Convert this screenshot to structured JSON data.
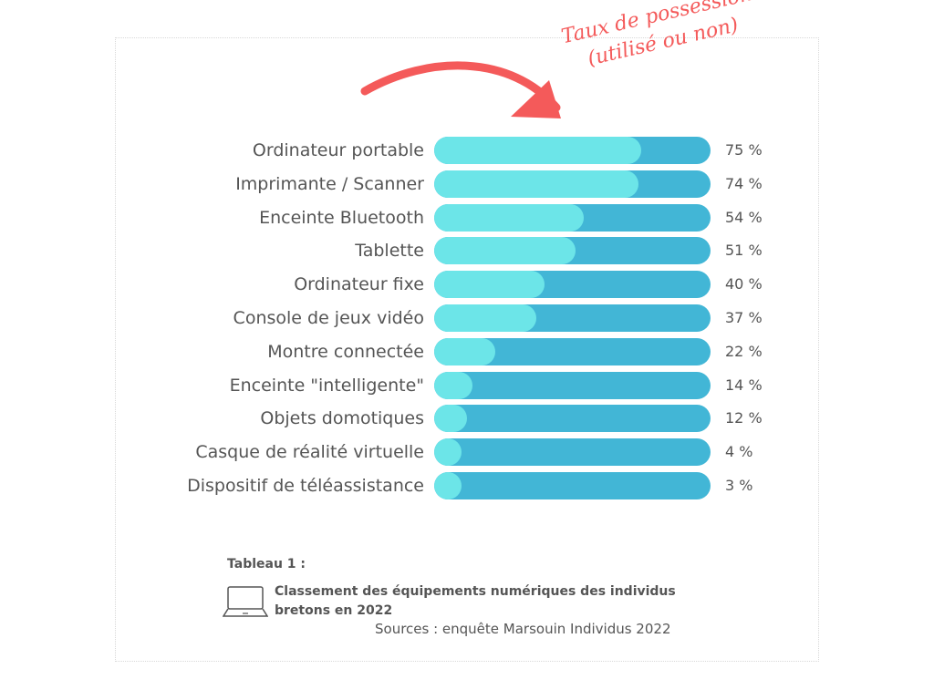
{
  "chart_data": {
    "type": "bar",
    "orientation": "horizontal",
    "annotation": [
      "Taux de possession",
      "(utilisé ou non)"
    ],
    "categories": [
      "Ordinateur portable",
      "Imprimante / Scanner",
      "Enceinte Bluetooth",
      "Tablette",
      "Ordinateur fixe",
      "Console de jeux vidéo",
      "Montre connectée",
      "Enceinte \"intelligente\"",
      "Objets domotiques",
      "Casque de réalité virtuelle",
      "Dispositif de téléassistance"
    ],
    "values": [
      75,
      74,
      54,
      51,
      40,
      37,
      22,
      14,
      12,
      4,
      3
    ],
    "value_labels": [
      "75 %",
      "74 %",
      "54 %",
      "51 %",
      "40 %",
      "37 %",
      "22 %",
      "14 %",
      "12 %",
      "4 %",
      "3 %"
    ],
    "xlim": [
      0,
      100
    ],
    "colors": {
      "fill": "#6ce5e8",
      "track": "#42b6d6",
      "annotation": "#f45a5a"
    }
  },
  "caption": {
    "heading": "Tableau 1 :",
    "title": "Classement des équipements numériques des individus bretons en 2022",
    "source": "Sources : enquête Marsouin Individus 2022",
    "icon": "laptop-icon"
  }
}
